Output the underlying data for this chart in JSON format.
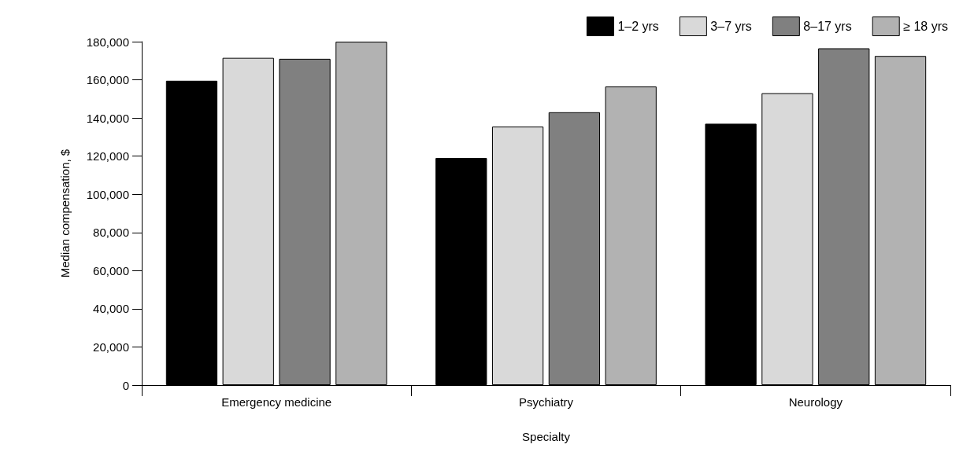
{
  "chart_data": {
    "type": "bar",
    "xlabel": "Specialty",
    "ylabel": "Median compensation, $",
    "categories": [
      "Emergency medicine",
      "Psychiatry",
      "Neurology"
    ],
    "series": [
      {
        "name": "1–2 yrs",
        "color": "#000000",
        "values": [
          159500,
          119000,
          137000
        ]
      },
      {
        "name": "3–7 yrs",
        "color": "#d9d9d9",
        "values": [
          171500,
          135500,
          153000
        ]
      },
      {
        "name": "8–17 yrs",
        "color": "#808080",
        "values": [
          171000,
          143000,
          176500
        ]
      },
      {
        "name": "≥ 18 yrs",
        "color": "#b2b2b2",
        "values": [
          180000,
          156500,
          172500
        ]
      }
    ],
    "ylim": [
      0,
      180000
    ],
    "yticks": [
      0,
      {
        "value": 20000,
        "label": "20,000"
      },
      {
        "value": 40000,
        "label": "40,000"
      },
      {
        "value": 60000,
        "label": "60,000"
      },
      {
        "value": 80000,
        "label": "80,000"
      },
      {
        "value": 100000,
        "label": "100,000"
      },
      {
        "value": 120000,
        "label": "120,000"
      },
      {
        "value": 140000,
        "label": "140,000"
      },
      {
        "value": 160000,
        "label": "160,000"
      },
      {
        "value": 180000,
        "label": "180,000"
      }
    ],
    "grid": false,
    "legend": "top right"
  }
}
